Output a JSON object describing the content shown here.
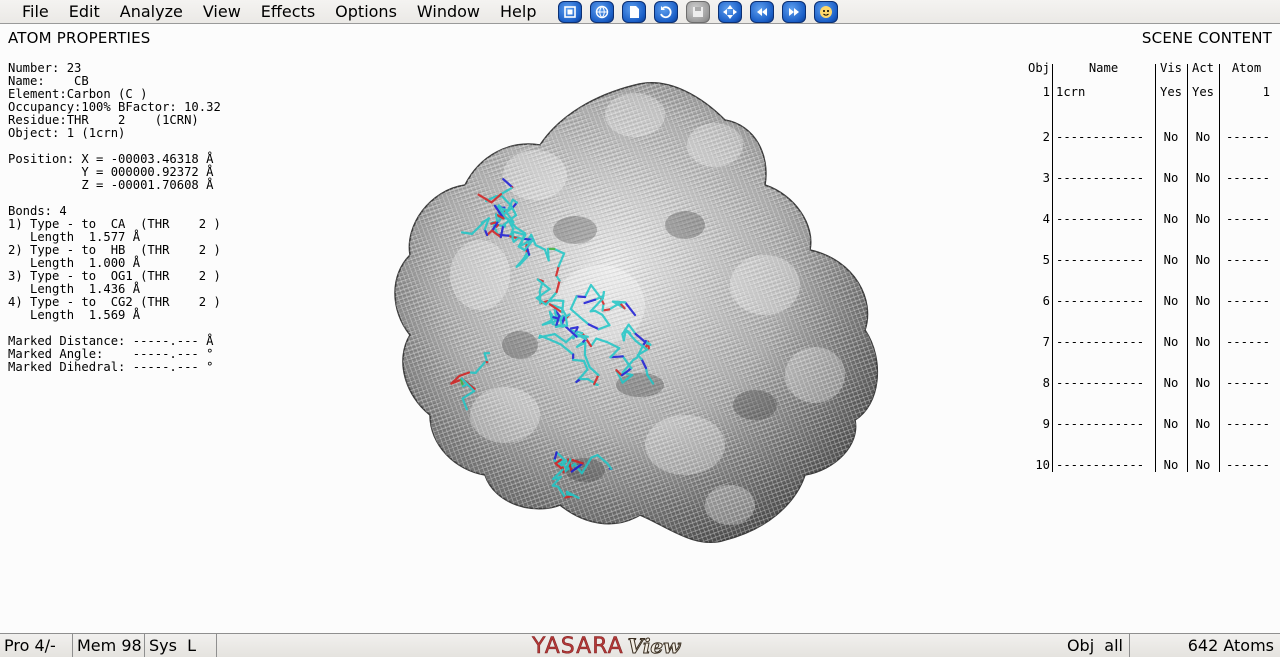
{
  "menu": [
    {
      "label": "File",
      "name": "menu-file"
    },
    {
      "label": "Edit",
      "name": "menu-edit"
    },
    {
      "label": "Analyze",
      "name": "menu-analyze"
    },
    {
      "label": "View",
      "name": "menu-view"
    },
    {
      "label": "Effects",
      "name": "menu-effects"
    },
    {
      "label": "Options",
      "name": "menu-options"
    },
    {
      "label": "Window",
      "name": "menu-window"
    },
    {
      "label": "Help",
      "name": "menu-help"
    }
  ],
  "toolbar": [
    {
      "icon": "select-window-icon",
      "enabled": true
    },
    {
      "icon": "globe-icon",
      "enabled": true
    },
    {
      "icon": "new-document-icon",
      "enabled": true
    },
    {
      "icon": "rotate-icon",
      "enabled": true
    },
    {
      "icon": "save-icon",
      "enabled": false
    },
    {
      "icon": "center-icon",
      "enabled": true
    },
    {
      "icon": "rewind-icon",
      "enabled": true
    },
    {
      "icon": "fast-forward-icon",
      "enabled": true
    },
    {
      "icon": "face-icon",
      "enabled": true
    }
  ],
  "atom_panel": {
    "title": "ATOM PROPERTIES",
    "lines": [
      "Number: 23",
      "Name:    CB",
      "Element:Carbon (C )",
      "Occupancy:100% BFactor: 10.32",
      "Residue:THR    2    (1CRN)",
      "Object: 1 (1crn)",
      "",
      "Position: X = -00003.46318 Å",
      "          Y = 000000.92372 Å",
      "          Z = -00001.70608 Å",
      "",
      "Bonds: 4",
      "1) Type - to  CA  (THR    2 )",
      "   Length  1.577 Å",
      "2) Type - to  HB  (THR    2 )",
      "   Length  1.000 Å",
      "3) Type - to  OG1 (THR    2 )",
      "   Length  1.436 Å",
      "4) Type - to  CG2 (THR    2 )",
      "   Length  1.569 Å",
      "",
      "Marked Distance: -----.--- Å",
      "Marked Angle:    -----.--- °",
      "Marked Dihedral: -----.--- °"
    ]
  },
  "scene_panel": {
    "title": "SCENE CONTENT",
    "headers": {
      "obj": "Obj",
      "name": "Name",
      "vis": "Vis",
      "act": "Act",
      "atom": "Atom"
    },
    "rows": [
      {
        "obj": "1",
        "name": "1crn",
        "vis": "Yes",
        "act": "Yes",
        "atom": "1"
      },
      {
        "obj": "2",
        "name": "------------",
        "vis": "No",
        "act": "No",
        "atom": "------"
      },
      {
        "obj": "3",
        "name": "------------",
        "vis": "No",
        "act": "No",
        "atom": "------"
      },
      {
        "obj": "4",
        "name": "------------",
        "vis": "No",
        "act": "No",
        "atom": "------"
      },
      {
        "obj": "5",
        "name": "------------",
        "vis": "No",
        "act": "No",
        "atom": "------"
      },
      {
        "obj": "6",
        "name": "------------",
        "vis": "No",
        "act": "No",
        "atom": "------"
      },
      {
        "obj": "7",
        "name": "------------",
        "vis": "No",
        "act": "No",
        "atom": "------"
      },
      {
        "obj": "8",
        "name": "------------",
        "vis": "No",
        "act": "No",
        "atom": "------"
      },
      {
        "obj": "9",
        "name": "------------",
        "vis": "No",
        "act": "No",
        "atom": "------"
      },
      {
        "obj": "10",
        "name": "------------",
        "vis": "No",
        "act": "No",
        "atom": "------"
      }
    ]
  },
  "statusbar": {
    "pro": "Pro 4/-",
    "mem": "Mem 98",
    "sys": "Sys  L",
    "logo_main": "YASARA",
    "logo_sub": "View",
    "obj": "Obj  all",
    "atoms": "642 Atoms"
  },
  "colors": {
    "stick_carbon": "#1fc7c7",
    "stick_oxygen": "#d42020",
    "stick_nitrogen": "#1a1ad6",
    "stick_sulfur": "#3bb33b",
    "surface": "#9a9a9a"
  }
}
